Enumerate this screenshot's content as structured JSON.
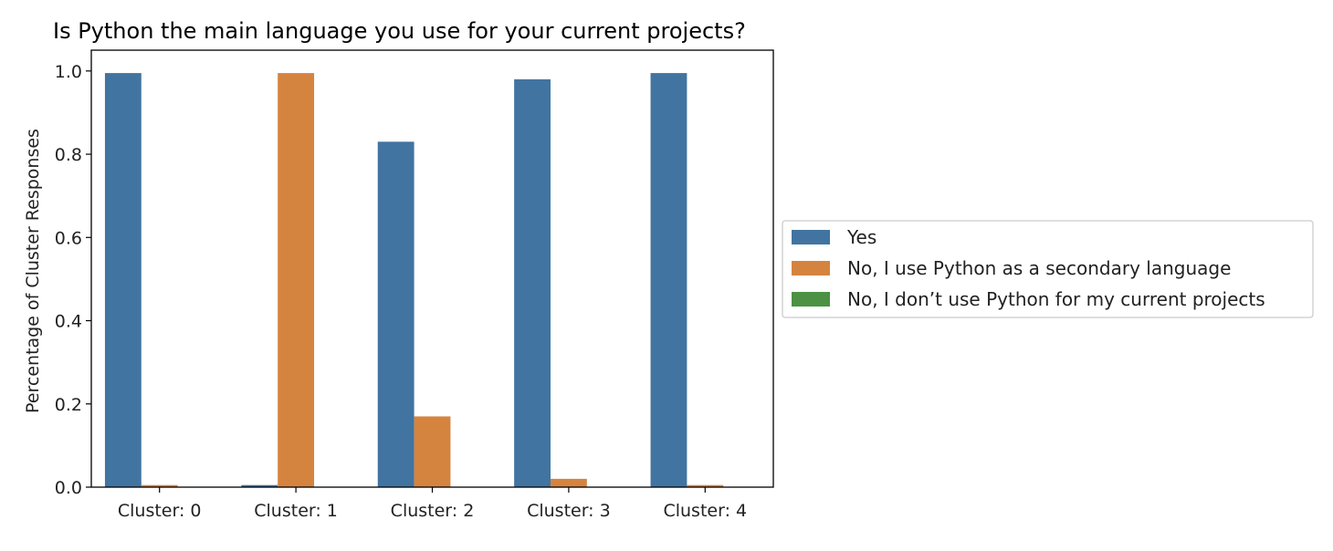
{
  "chart_data": {
    "type": "bar",
    "title": "Is Python the main language you use for your current projects?",
    "xlabel": "",
    "ylabel": "Percentage of Cluster Responses",
    "categories": [
      "Cluster: 0",
      "Cluster: 1",
      "Cluster: 2",
      "Cluster: 3",
      "Cluster: 4"
    ],
    "ylim": [
      0,
      1.05
    ],
    "yticks": [
      "0.0",
      "0.2",
      "0.4",
      "0.6",
      "0.8",
      "1.0"
    ],
    "series": [
      {
        "name": "Yes",
        "color": "#4174a1",
        "values": [
          0.995,
          0.005,
          0.83,
          0.98,
          0.995
        ]
      },
      {
        "name": "No, I use Python as a secondary language",
        "color": "#d5843f",
        "values": [
          0.005,
          0.995,
          0.17,
          0.02,
          0.005
        ]
      },
      {
        "name": "No, I don’t use Python for my current projects",
        "color": "#4c9144",
        "values": [
          0,
          0,
          0,
          0,
          0
        ]
      }
    ],
    "grid": false,
    "legend_placement": "outside-right"
  }
}
